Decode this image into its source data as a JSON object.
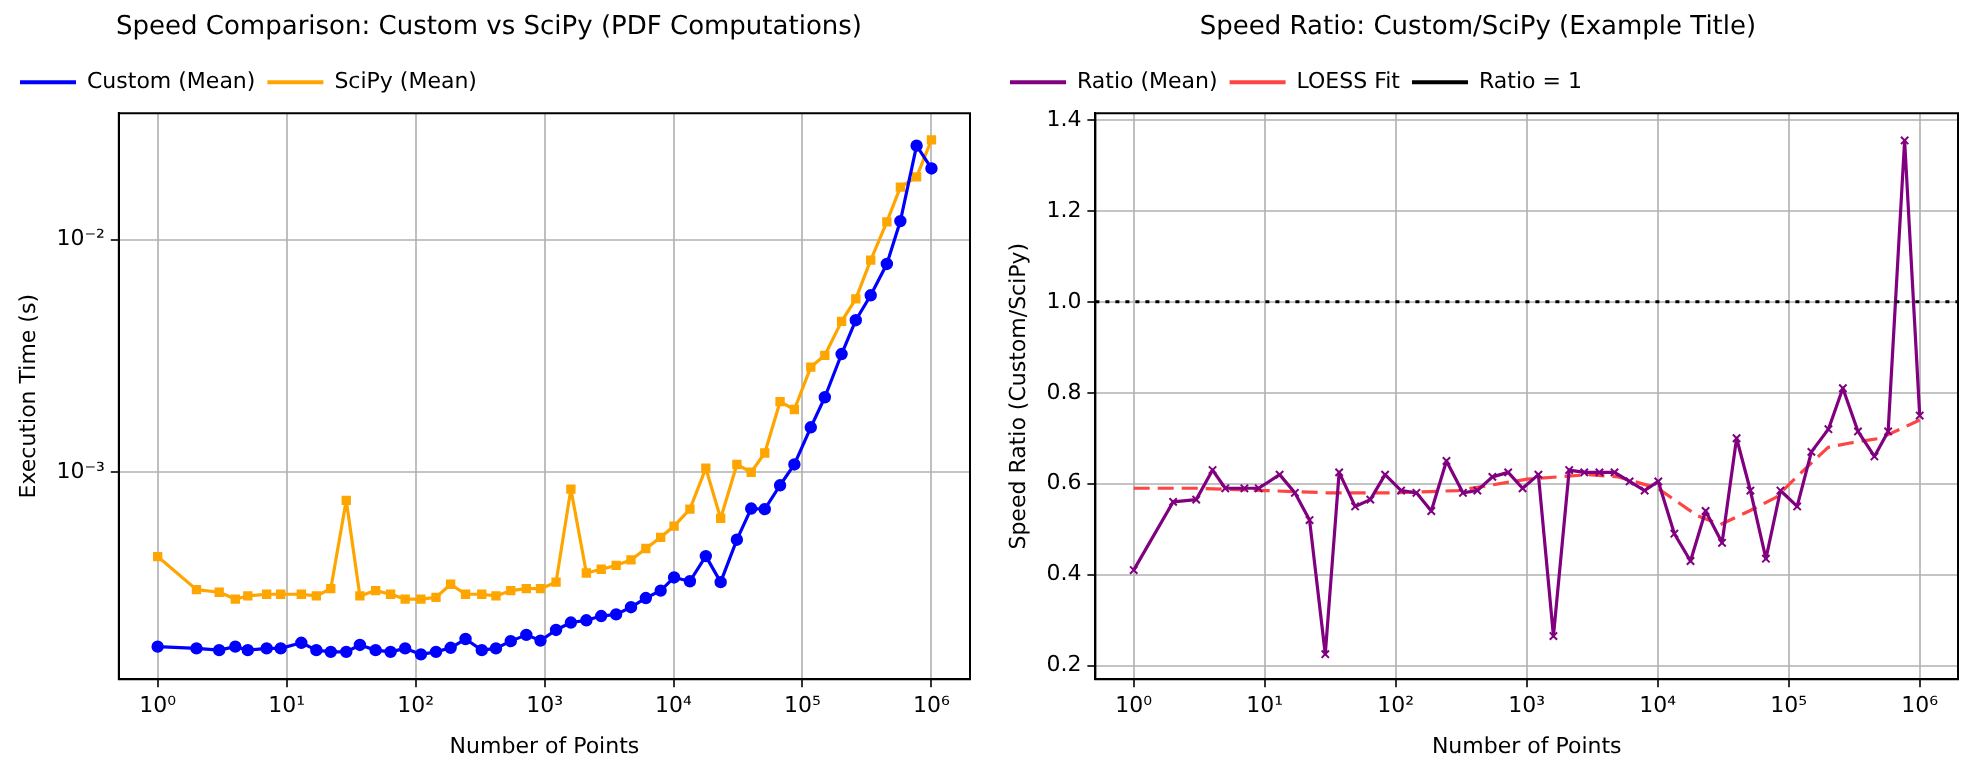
{
  "chart_data": [
    {
      "type": "line",
      "title": "Speed Comparison: Custom vs SciPy (PDF Computations)",
      "xlabel": "Number of Points",
      "ylabel": "Execution Time (s)",
      "log": "xy",
      "grid": true,
      "legend": "top left",
      "x": [
        1,
        2,
        3,
        4,
        5,
        7,
        9,
        13,
        17,
        22,
        29,
        37,
        49,
        64,
        83,
        110,
        144,
        187,
        244,
        326,
        420,
        547,
        722,
        930,
        1228,
        1600,
        2110,
        2750,
        3590,
        4680,
        6100,
        7950,
        10100,
        13400,
        17800,
        23200,
        31000,
        40000,
        51000,
        67000,
        86500,
        116000,
        149000,
        201000,
        259000,
        338000,
        451000,
        574000,
        767000,
        1000000
      ],
      "xlim": [
        0.5,
        1990000
      ],
      "xticks": [
        {
          "value": 1,
          "label": "10⁰"
        },
        {
          "value": 10,
          "label": "10¹"
        },
        {
          "value": 100,
          "label": "10²"
        },
        {
          "value": 1000,
          "label": "10³"
        },
        {
          "value": 10000,
          "label": "10⁴"
        },
        {
          "value": 100000,
          "label": "10⁵"
        },
        {
          "value": 1000000,
          "label": "10⁶"
        }
      ],
      "ylim": [
        0.000129,
        0.0349
      ],
      "yticks": [
        {
          "value": 0.001,
          "label": "10⁻³"
        },
        {
          "value": 0.01,
          "label": "10⁻²"
        }
      ],
      "series": [
        {
          "name": "Custom (Mean)",
          "color": "#0000ff",
          "marker": "circle",
          "values": [
            0.000178,
            0.000175,
            0.000172,
            0.000178,
            0.000172,
            0.000175,
            0.000175,
            0.000185,
            0.000172,
            0.000169,
            0.000169,
            0.000181,
            0.000172,
            0.000169,
            0.000175,
            0.000165,
            0.000169,
            0.000176,
            0.000192,
            0.000172,
            0.000175,
            0.000188,
            0.0002,
            0.000189,
            0.00021,
            0.000226,
            0.000231,
            0.000241,
            0.000245,
            0.000263,
            0.000288,
            0.00031,
            0.000353,
            0.00034,
            0.000436,
            0.000337,
            0.000513,
            0.000698,
            0.000694,
            0.000879,
            0.00108,
            0.00156,
            0.0021,
            0.00322,
            0.0045,
            0.00576,
            0.00785,
            0.012,
            0.0253,
            0.0202
          ]
        },
        {
          "name": "SciPy (Mean)",
          "color": "#ffa500",
          "marker": "square",
          "values": [
            0.000434,
            0.000313,
            0.000305,
            0.000285,
            0.000294,
            0.000299,
            0.000299,
            0.000299,
            0.000294,
            0.000316,
            0.000757,
            0.000294,
            0.00031,
            0.000299,
            0.000285,
            0.000285,
            0.00029,
            0.00033,
            0.000299,
            0.000299,
            0.000294,
            0.00031,
            0.000316,
            0.000316,
            0.000337,
            0.000846,
            0.000369,
            0.000383,
            0.000398,
            0.00042,
            0.00047,
            0.000525,
            0.000587,
            0.000694,
            0.00104,
            0.000633,
            0.00108,
            0.001,
            0.00121,
            0.00201,
            0.00186,
            0.00283,
            0.00318,
            0.00445,
            0.00556,
            0.00815,
            0.0119,
            0.0168,
            0.0186,
            0.0268
          ]
        }
      ]
    },
    {
      "type": "line",
      "title": "Speed Ratio: Custom/SciPy (Example Title)",
      "xlabel": "Number of Points",
      "ylabel": "Speed Ratio (Custom/SciPy)",
      "log": "x",
      "grid": true,
      "legend": "top left",
      "x": [
        1,
        2,
        3,
        4,
        5,
        7,
        9,
        13,
        17,
        22,
        29,
        37,
        49,
        64,
        83,
        110,
        144,
        187,
        244,
        326,
        420,
        547,
        722,
        930,
        1228,
        1600,
        2110,
        2750,
        3590,
        4680,
        6100,
        7950,
        10100,
        13400,
        17800,
        23200,
        31000,
        40000,
        51000,
        67000,
        86500,
        116000,
        149000,
        201000,
        259000,
        338000,
        451000,
        574000,
        767000,
        1000000
      ],
      "xlim": [
        0.51,
        1960000
      ],
      "xticks": [
        {
          "value": 1,
          "label": "10⁰"
        },
        {
          "value": 10,
          "label": "10¹"
        },
        {
          "value": 100,
          "label": "10²"
        },
        {
          "value": 1000,
          "label": "10³"
        },
        {
          "value": 10000,
          "label": "10⁴"
        },
        {
          "value": 100000,
          "label": "10⁵"
        },
        {
          "value": 1000000,
          "label": "10⁶"
        }
      ],
      "ylim": [
        0.17,
        1.415
      ],
      "yticks": [
        {
          "value": 0.2,
          "label": "0.2"
        },
        {
          "value": 0.4,
          "label": "0.4"
        },
        {
          "value": 0.6,
          "label": "0.6"
        },
        {
          "value": 0.8,
          "label": "0.8"
        },
        {
          "value": 1,
          "label": "1.0"
        },
        {
          "value": 1.2,
          "label": "1.2"
        },
        {
          "value": 1.4,
          "label": "1.4"
        }
      ],
      "series": [
        {
          "name": "Ratio (Mean)",
          "color": "#800080",
          "marker": "cross",
          "values": [
            0.41,
            0.56,
            0.565,
            0.63,
            0.59,
            0.59,
            0.59,
            0.62,
            0.58,
            0.52,
            0.225,
            0.625,
            0.55,
            0.565,
            0.62,
            0.585,
            0.58,
            0.54,
            0.65,
            0.58,
            0.585,
            0.615,
            0.625,
            0.59,
            0.62,
            0.265,
            0.63,
            0.625,
            0.625,
            0.625,
            0.605,
            0.585,
            0.605,
            0.49,
            0.43,
            0.54,
            0.47,
            0.7,
            0.585,
            0.435,
            0.585,
            0.55,
            0.67,
            0.72,
            0.81,
            0.715,
            0.66,
            0.715,
            1.355,
            0.75
          ]
        },
        {
          "name": "LOESS Fit",
          "color": "#ff4444",
          "marker": "none",
          "line_style": "dashed",
          "x": [
            1,
            3,
            10,
            30,
            100,
            300,
            1000,
            3000,
            5000,
            10000,
            20000,
            30000,
            50000,
            80000,
            120000,
            200000,
            300000,
            500000,
            1000000
          ],
          "values": [
            0.59,
            0.59,
            0.585,
            0.58,
            0.58,
            0.585,
            0.61,
            0.62,
            0.615,
            0.59,
            0.53,
            0.51,
            0.54,
            0.57,
            0.62,
            0.68,
            0.69,
            0.7,
            0.74
          ]
        }
      ],
      "ref_lines": [
        {
          "axis": "y",
          "value": 1,
          "label": "Ratio = 1",
          "color": "#000000",
          "line_style": "dotted"
        }
      ]
    }
  ]
}
